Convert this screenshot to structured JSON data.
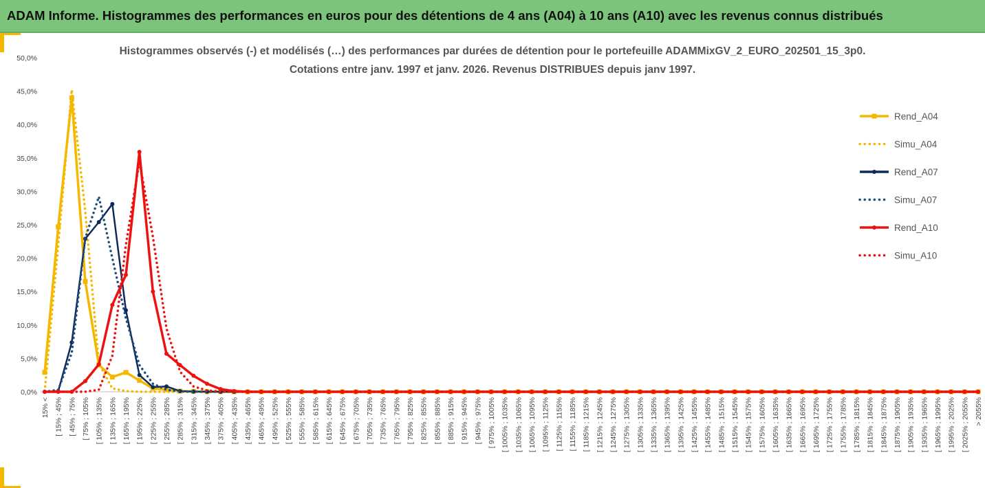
{
  "banner": {
    "title": "ADAM Informe. Histogrammes des performances en euros pour des détentions de 4 ans (A04) à 10 ans (A10) avec les revenus connus distribués"
  },
  "colors": {
    "banner": "#7cc47c",
    "A04": "#f5b800",
    "A07": "#0e2a5c",
    "A10": "#ee1111",
    "accent": "#f5b800"
  },
  "chart_data": {
    "type": "line",
    "title": "Histogrammes observés (-) et modélisés (…) des performances par durées de détention pour le portefeuille ADAMMixGV_2_EURO_202501_15_3p0.",
    "subtitle": "Cotations entre janv. 1997 et janv. 2026. Revenus DISTRIBUES depuis janv 1997.",
    "xlabel": "",
    "ylabel": "",
    "ylim": [
      0,
      0.5
    ],
    "yticks": [
      "0,0%",
      "5,0%",
      "10,0%",
      "15,0%",
      "20,0%",
      "25,0%",
      "30,0%",
      "35,0%",
      "40,0%",
      "45,0%",
      "50,0%"
    ],
    "grid": false,
    "legend_position": "right",
    "categories": [
      "15% <",
      "[ 15% ; 45%",
      "[ 45% ; 75%",
      "[ 75% ; 105%",
      "[ 105% ; 135%",
      "[ 135% ; 165%",
      "[ 165% ; 195%",
      "[ 195% ; 225%",
      "[ 225% ; 255%",
      "[ 255% ; 285%",
      "[ 285% ; 315%",
      "[ 315% ; 345%",
      "[ 345% ; 375%",
      "[ 375% ; 405%",
      "[ 405% ; 435%",
      "[ 435% ; 465%",
      "[ 465% ; 495%",
      "[ 495% ; 525%",
      "[ 525% ; 555%",
      "[ 555% ; 585%",
      "[ 585% ; 615%",
      "[ 615% ; 645%",
      "[ 645% ; 675%",
      "[ 675% ; 705%",
      "[ 705% ; 735%",
      "[ 735% ; 765%",
      "[ 765% ; 795%",
      "[ 795% ; 825%",
      "[ 825% ; 855%",
      "[ 855% ; 885%",
      "[ 885% ; 915%",
      "[ 915% ; 945%",
      "[ 945% ; 975%",
      "[ 975% ; 1005%",
      "[ 1005% ; 1035%",
      "[ 1035% ; 1065%",
      "[ 1065% ; 1095%",
      "[ 1095% ; 1125%",
      "[ 1125% ; 1155%",
      "[ 1155% ; 1185%",
      "[ 1185% ; 1215%",
      "[ 1215% ; 1245%",
      "[ 1245% ; 1275%",
      "[ 1275% ; 1305%",
      "[ 1305% ; 1335%",
      "[ 1335% ; 1365%",
      "[ 1365% ; 1395%",
      "[ 1395% ; 1425%",
      "[ 1425% ; 1455%",
      "[ 1455% ; 1485%",
      "[ 1485% ; 1515%",
      "[ 1515% ; 1545%",
      "[ 1545% ; 1575%",
      "[ 1575% ; 1605%",
      "[ 1605% ; 1635%",
      "[ 1635% ; 1665%",
      "[ 1665% ; 1695%",
      "[ 1695% ; 1725%",
      "[ 1725% ; 1755%",
      "[ 1755% ; 1785%",
      "[ 1785% ; 1815%",
      "[ 1815% ; 1845%",
      "[ 1845% ; 1875%",
      "[ 1875% ; 1905%",
      "[ 1905% ; 1935%",
      "[ 1935% ; 1965%",
      "[ 1965% ; 1995%",
      "[ 1995% ; 2025%",
      "[ 2025% ; 2055%",
      "> 2055%"
    ],
    "series": [
      {
        "name": "Rend_A04",
        "style": "solid",
        "marker": "square",
        "color": "#f5b800",
        "values": [
          0.029,
          0.247,
          0.44,
          0.165,
          0.04,
          0.022,
          0.029,
          0.017,
          0.005,
          0.003,
          0.001,
          0.0005,
          0.0002,
          0.0001,
          0,
          0,
          0,
          0,
          0,
          0,
          0,
          0,
          0,
          0,
          0,
          0,
          0,
          0,
          0,
          0,
          0,
          0,
          0,
          0,
          0,
          0,
          0,
          0,
          0,
          0,
          0,
          0,
          0,
          0,
          0,
          0,
          0,
          0,
          0,
          0,
          0,
          0,
          0,
          0,
          0,
          0,
          0,
          0,
          0,
          0,
          0,
          0,
          0,
          0,
          0,
          0,
          0,
          0,
          0,
          0
        ]
      },
      {
        "name": "Simu_A04",
        "style": "dotted",
        "marker": "none",
        "color": "#f5b800",
        "values": [
          0.001,
          0.22,
          0.452,
          0.27,
          0.042,
          0.005,
          0.001,
          0,
          0,
          0,
          0,
          0,
          0,
          0,
          0,
          0,
          0,
          0,
          0,
          0,
          0,
          0,
          0,
          0,
          0,
          0,
          0,
          0,
          0,
          0,
          0,
          0,
          0,
          0,
          0,
          0,
          0,
          0,
          0,
          0,
          0,
          0,
          0,
          0,
          0,
          0,
          0,
          0,
          0,
          0,
          0,
          0,
          0,
          0,
          0,
          0,
          0,
          0,
          0,
          0,
          0,
          0,
          0,
          0,
          0,
          0,
          0,
          0,
          0,
          0
        ]
      },
      {
        "name": "Rend_A07",
        "style": "solid",
        "marker": "circle",
        "color": "#0e2a5c",
        "values": [
          0,
          0.001,
          0.074,
          0.229,
          0.254,
          0.281,
          0.122,
          0.025,
          0.007,
          0.008,
          0.001,
          0.0002,
          0.0001,
          0,
          0,
          0,
          0,
          0,
          0,
          0,
          0,
          0,
          0,
          0,
          0,
          0,
          0,
          0,
          0,
          0,
          0,
          0,
          0,
          0,
          0,
          0,
          0,
          0,
          0,
          0,
          0,
          0,
          0,
          0,
          0,
          0,
          0,
          0,
          0,
          0,
          0,
          0,
          0,
          0,
          0,
          0,
          0,
          0,
          0,
          0,
          0,
          0,
          0,
          0,
          0,
          0,
          0,
          0,
          0,
          0
        ]
      },
      {
        "name": "Simu_A07",
        "style": "dotted",
        "marker": "none",
        "color": "#1f4e79",
        "values": [
          0,
          0.003,
          0.058,
          0.23,
          0.292,
          0.2,
          0.11,
          0.04,
          0.012,
          0.003,
          0.0005,
          0.0001,
          0,
          0,
          0,
          0,
          0,
          0,
          0,
          0,
          0,
          0,
          0,
          0,
          0,
          0,
          0,
          0,
          0,
          0,
          0,
          0,
          0,
          0,
          0,
          0,
          0,
          0,
          0,
          0,
          0,
          0,
          0,
          0,
          0,
          0,
          0,
          0,
          0,
          0,
          0,
          0,
          0,
          0,
          0,
          0,
          0,
          0,
          0,
          0,
          0,
          0,
          0,
          0,
          0,
          0,
          0,
          0,
          0,
          0
        ]
      },
      {
        "name": "Rend_A10",
        "style": "solid",
        "marker": "circle",
        "color": "#ee1111",
        "values": [
          0,
          0,
          0,
          0.016,
          0.041,
          0.13,
          0.175,
          0.359,
          0.15,
          0.057,
          0.04,
          0.024,
          0.012,
          0.004,
          0.001,
          0,
          0,
          0,
          0,
          0,
          0,
          0,
          0,
          0,
          0,
          0,
          0,
          0,
          0,
          0,
          0,
          0,
          0,
          0,
          0,
          0,
          0,
          0,
          0,
          0,
          0,
          0,
          0,
          0,
          0,
          0,
          0,
          0,
          0,
          0,
          0,
          0,
          0,
          0,
          0,
          0,
          0,
          0,
          0,
          0,
          0,
          0,
          0,
          0,
          0,
          0,
          0,
          0,
          0,
          0
        ]
      },
      {
        "name": "Simu_A10",
        "style": "dotted",
        "marker": "none",
        "color": "#ee1111",
        "values": [
          0,
          0,
          0,
          0.0001,
          0.003,
          0.054,
          0.22,
          0.345,
          0.232,
          0.095,
          0.03,
          0.008,
          0.002,
          0.0005,
          0.0001,
          0,
          0,
          0,
          0,
          0,
          0,
          0,
          0,
          0,
          0,
          0,
          0,
          0,
          0,
          0,
          0,
          0,
          0,
          0,
          0,
          0,
          0,
          0,
          0,
          0,
          0,
          0,
          0,
          0,
          0,
          0,
          0,
          0,
          0,
          0,
          0,
          0,
          0,
          0,
          0,
          0,
          0,
          0,
          0,
          0,
          0,
          0,
          0,
          0,
          0,
          0,
          0,
          0,
          0,
          0
        ]
      }
    ]
  }
}
